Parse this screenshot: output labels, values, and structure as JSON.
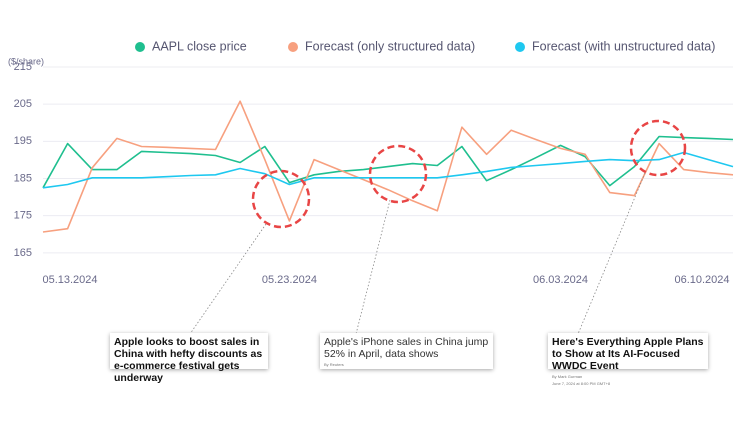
{
  "chart_data": {
    "type": "line",
    "y_unit": "($/share)",
    "categories": [
      "05.13.2024",
      null,
      null,
      null,
      null,
      null,
      null,
      null,
      null,
      null,
      "05.23.2024",
      null,
      null,
      null,
      null,
      null,
      null,
      null,
      null,
      null,
      null,
      "06.03.2024",
      null,
      null,
      null,
      null,
      null,
      null,
      "06.10.2024"
    ],
    "series": [
      {
        "name": "AAPL close price",
        "color": "#1fbf8f",
        "values": [
          182.5,
          194.4,
          187.4,
          187.4,
          192.3,
          192,
          191.7,
          191.2,
          189.3,
          193.6,
          183.9,
          186,
          186.9,
          187.4,
          188.2,
          189,
          188.5,
          193.6,
          184.4,
          187.4,
          190.6,
          193.9,
          190.9,
          183.1,
          188.2,
          196.3,
          196,
          195.8,
          195.5
        ]
      },
      {
        "name": "Forecast (only structured data)",
        "color": "#f7a07f",
        "values": [
          170.6,
          171.5,
          187.9,
          195.8,
          193.6,
          193.4,
          193.1,
          192.8,
          205.8,
          190.1,
          173.6,
          190.1,
          187.4,
          184.7,
          182,
          179,
          176.3,
          198.8,
          191.5,
          198,
          195.5,
          193.1,
          191.5,
          181.2,
          180.4,
          194.4,
          187.4,
          186.6,
          186
        ]
      },
      {
        "name": "Forecast (with unstructured data)",
        "color": "#1ec8f0",
        "values": [
          182.5,
          183.4,
          185.2,
          185.2,
          185.2,
          185.5,
          185.8,
          186,
          187.7,
          186.3,
          183.4,
          185.2,
          185.2,
          185.2,
          185.2,
          185.2,
          185.2,
          186,
          186.9,
          188,
          188.5,
          189,
          189.6,
          190.1,
          189.8,
          190.1,
          192,
          190.1,
          188.2
        ]
      }
    ],
    "ylim": [
      162,
      215
    ],
    "yticks": [
      165,
      175,
      185,
      195,
      205,
      215
    ],
    "grid": true,
    "annotations": [
      {
        "headline": "Apple looks to boost sales in China with hefty discounts as e-commerce festival gets underway"
      },
      {
        "headline": "Apple's iPhone sales in China jump 52% in April, data shows",
        "byline": "By Reuters"
      },
      {
        "headline": "Here's Everything Apple Plans to Show at Its AI-Focused WWDC Event",
        "byline": "By Mark Gurman",
        "date": "June 7, 2024 at 8:00 PM GMT+8"
      }
    ]
  }
}
